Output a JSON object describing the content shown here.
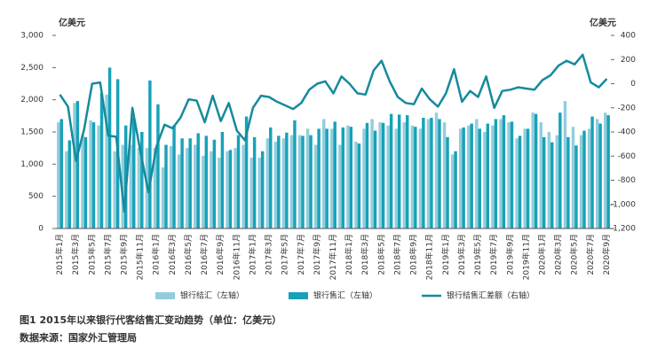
{
  "chart_data": {
    "type": "bar_line",
    "caption": "图1 2015年以来银行代客结售汇变动趋势（单位：亿美元）",
    "source": "数据来源：国家外汇管理局",
    "y_label": "亿美元",
    "y2_label": "亿美元",
    "categories": [
      "2015年1月",
      null,
      "2015年3月",
      null,
      "2015年5月",
      null,
      "2015年7月",
      null,
      "2015年9月",
      null,
      "2015年11月",
      null,
      "2016年1月",
      null,
      "2016年3月",
      null,
      "2016年5月",
      null,
      "2016年7月",
      null,
      "2016年9月",
      null,
      "2016年11月",
      null,
      "2017年1月",
      null,
      "2017年3月",
      null,
      "2017年5月",
      null,
      "2017年7月",
      null,
      "2017年9月",
      null,
      "2017年11月",
      null,
      "2018年1月",
      null,
      "2018年3月",
      null,
      "2018年5月",
      null,
      "2018年7月",
      null,
      "2018年9月",
      null,
      "2018年11月",
      null,
      "2019年1月",
      null,
      "2019年3月",
      null,
      "2019年5月",
      null,
      "2019年7月",
      null,
      "2019年9月",
      null,
      "2019年11月",
      null,
      "2020年1月",
      null,
      "2020年3月",
      null,
      "2020年5月",
      null,
      "2020年7月",
      null,
      "2020年9月"
    ],
    "series": [
      {
        "name": "银行结汇（左轴）",
        "color": "#93cddd",
        "type": "bar",
        "values": [
          1650,
          1200,
          1950,
          1450,
          1680,
          1600,
          2080,
          1200,
          1300,
          1300,
          1250,
          1250,
          1250,
          950,
          1280,
          1150,
          1250,
          1300,
          1130,
          1200,
          1100,
          1200,
          1250,
          1300,
          1100,
          1100,
          1400,
          1350,
          1400,
          1450,
          1450,
          1550,
          1300,
          1700,
          1550,
          1300,
          1600,
          1350,
          1550,
          1700,
          1650,
          1600,
          1550,
          1650,
          1600,
          1550,
          1700,
          1800,
          1650,
          1150,
          1550,
          1600,
          1700,
          1500,
          1600,
          1700,
          1650,
          1400,
          1550,
          1800,
          1650,
          1500,
          1450,
          1980,
          1580,
          1450,
          1550,
          1700,
          1800
        ]
      },
      {
        "name": "银行售汇（左轴）",
        "color": "#17a2b8",
        "type": "bar",
        "values": [
          1700,
          1370,
          1980,
          1420,
          1650,
          2100,
          2500,
          2320,
          1600,
          1720,
          1500,
          2300,
          1930,
          1300,
          1600,
          1400,
          1400,
          1480,
          1440,
          1380,
          1500,
          1220,
          1450,
          1740,
          1420,
          1200,
          1570,
          1440,
          1490,
          1680,
          1440,
          1450,
          1550,
          1550,
          1660,
          1570,
          1580,
          1320,
          1640,
          1520,
          1640,
          1780,
          1770,
          1760,
          1580,
          1720,
          1720,
          1700,
          1420,
          1200,
          1570,
          1630,
          1550,
          1630,
          1700,
          1760,
          1660,
          1440,
          1550,
          1780,
          1420,
          1340,
          1800,
          1420,
          1290,
          1520,
          1740,
          1630,
          1760
        ]
      },
      {
        "name": "银行结售汇差额（右轴）",
        "color": "#168a9c",
        "type": "line",
        "axis": "y2",
        "values": [
          -90,
          -190,
          -640,
          -380,
          0,
          10,
          -430,
          -440,
          -1060,
          -200,
          -560,
          -900,
          -520,
          -340,
          -370,
          -280,
          -130,
          -140,
          -320,
          -100,
          -310,
          -160,
          -390,
          -470,
          -200,
          -100,
          -110,
          -150,
          -180,
          -210,
          -160,
          -50,
          0,
          20,
          -80,
          60,
          0,
          -80,
          -90,
          110,
          190,
          20,
          -110,
          -160,
          -170,
          -40,
          -130,
          -190,
          -80,
          120,
          -150,
          -60,
          -110,
          60,
          -200,
          -60,
          -50,
          -30,
          -40,
          -50,
          30,
          70,
          150,
          190,
          160,
          240,
          10,
          -30,
          40
        ]
      }
    ],
    "ylim": [
      0,
      3000
    ],
    "yticks": [
      0,
      {
        "value": 500,
        "label": "500"
      },
      {
        "value": 1000,
        "label": "1,000"
      },
      {
        "value": 1500,
        "label": "1,500"
      },
      {
        "value": 2000,
        "label": "2,000"
      },
      {
        "value": 2500,
        "label": "2,500"
      },
      {
        "value": 3000,
        "label": "3,000"
      }
    ],
    "y2lim": [
      -1200,
      400
    ],
    "y2ticks": [
      {
        "value": -1200,
        "label": "-1,200"
      },
      {
        "value": -1000,
        "label": "-1,000"
      },
      -800,
      -600,
      -400,
      -200,
      0,
      200,
      400
    ]
  }
}
